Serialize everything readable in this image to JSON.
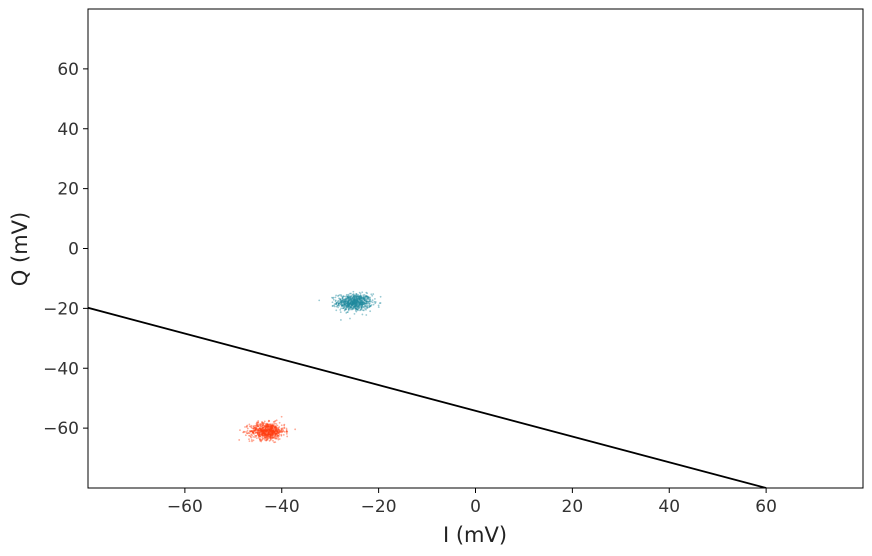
{
  "chart_data": {
    "type": "scatter",
    "xlabel": "I (mV)",
    "ylabel": "Q (mV)",
    "xlim": [
      -80,
      80
    ],
    "ylim": [
      -80,
      80
    ],
    "x_ticks": [
      -60,
      -40,
      -20,
      0,
      20,
      40,
      60
    ],
    "y_ticks": [
      -60,
      -40,
      -20,
      0,
      20,
      40,
      60
    ],
    "x_tick_labels": [
      "−60",
      "−40",
      "−20",
      "0",
      "20",
      "40",
      "60"
    ],
    "y_tick_labels": [
      "−60",
      "−40",
      "−20",
      "0",
      "20",
      "40",
      "60"
    ],
    "grid": false,
    "series": [
      {
        "color": "#1f8a9e",
        "center": [
          -25,
          -18
        ],
        "std": [
          1.8,
          1.4
        ],
        "n_points": 700
      },
      {
        "color": "#ff3d12",
        "center": [
          -43,
          -61
        ],
        "std": [
          1.8,
          1.4
        ],
        "n_points": 700
      }
    ],
    "decision_boundary": {
      "color": "#000000",
      "points": [
        [
          -80,
          -19.8
        ],
        [
          60,
          -80
        ]
      ]
    }
  }
}
